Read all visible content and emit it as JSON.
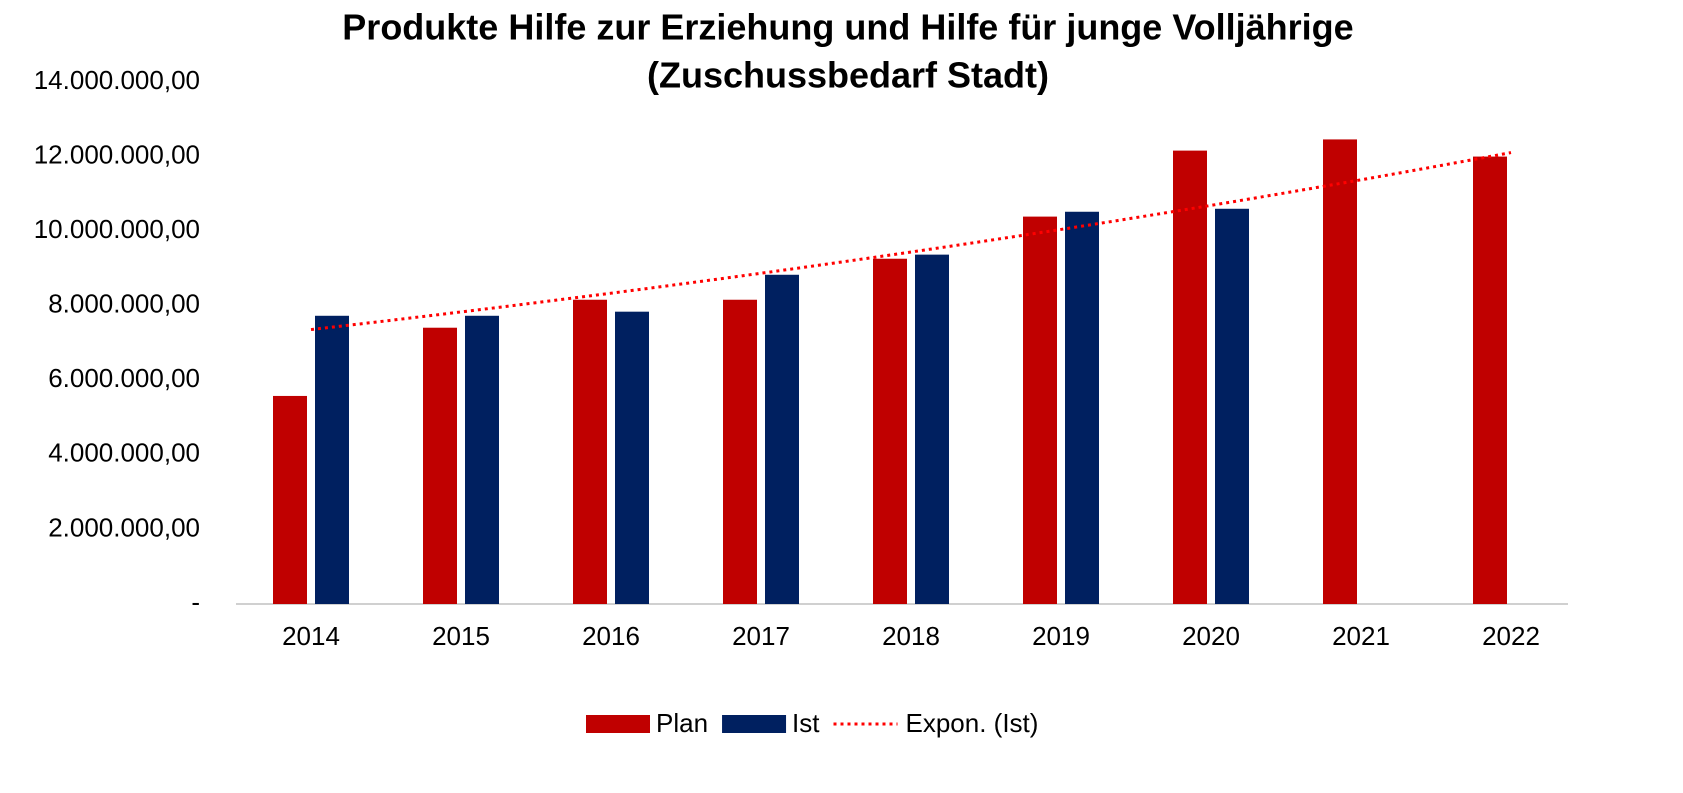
{
  "chart_data": {
    "type": "bar",
    "title": [
      "Produkte Hilfe zur Erziehung und Hilfe für junge Volljährige",
      "(Zuschussbedarf Stadt)"
    ],
    "categories": [
      "2014",
      "2015",
      "2016",
      "2017",
      "2018",
      "2019",
      "2020",
      "2021",
      "2022"
    ],
    "series": [
      {
        "name": "Plan",
        "color": "#c00000",
        "values": [
          5580000,
          7410000,
          8160000,
          8160000,
          9260000,
          10390000,
          12160000,
          12460000,
          12000000
        ]
      },
      {
        "name": "Ist",
        "color": "#002060",
        "values": [
          7730000,
          7730000,
          7840000,
          8830000,
          9370000,
          10520000,
          10600000,
          null,
          null
        ]
      }
    ],
    "trendline": {
      "name": "Expon. (Ist)",
      "color": "#ff0000",
      "of": "Ist",
      "kind": "exponential"
    },
    "ylim": [
      0,
      14000000
    ],
    "yticks": [
      {
        "value": 0,
        "label": "-"
      },
      {
        "value": 2000000,
        "label": "2.000.000,00"
      },
      {
        "value": 4000000,
        "label": "4.000.000,00"
      },
      {
        "value": 6000000,
        "label": "6.000.000,00"
      },
      {
        "value": 8000000,
        "label": "8.000.000,00"
      },
      {
        "value": 10000000,
        "label": "10.000.000,00"
      },
      {
        "value": 12000000,
        "label": "12.000.000,00"
      },
      {
        "value": 14000000,
        "label": "14.000.000,00"
      }
    ],
    "grid": false,
    "legend": "bottom"
  }
}
